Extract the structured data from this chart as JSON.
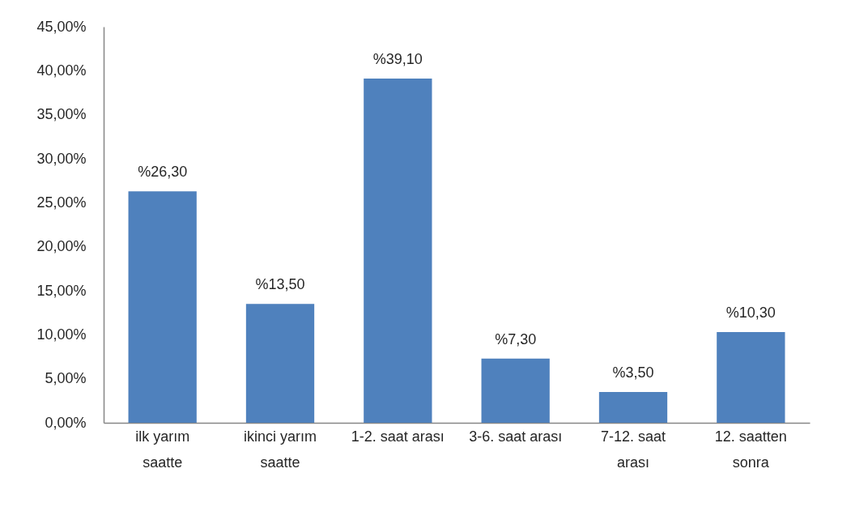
{
  "chart_data": {
    "type": "bar",
    "categories": [
      "ilk yarım saatte",
      "ikinci yarım saatte",
      "1-2. saat arası",
      "3-6. saat arası",
      "7-12. saat arası",
      "12. saatten sonra"
    ],
    "values": [
      26.3,
      13.5,
      39.1,
      7.3,
      3.5,
      10.3
    ],
    "value_labels": [
      "%26,30",
      "%13,50",
      "%39,10",
      "%7,30",
      "%3,50",
      "%10,30"
    ],
    "color": "#4f81bd",
    "ylim": [
      0,
      45
    ],
    "yticks": [
      {
        "value": 0,
        "label": "0,00%"
      },
      {
        "value": 5,
        "label": "5,00%"
      },
      {
        "value": 10,
        "label": "10,00%"
      },
      {
        "value": 15,
        "label": "15,00%"
      },
      {
        "value": 20,
        "label": "20,00%"
      },
      {
        "value": 25,
        "label": "25,00%"
      },
      {
        "value": 30,
        "label": "30,00%"
      },
      {
        "value": 35,
        "label": "35,00%"
      },
      {
        "value": 40,
        "label": "40,00%"
      },
      {
        "value": 45,
        "label": "45,00%"
      }
    ]
  }
}
